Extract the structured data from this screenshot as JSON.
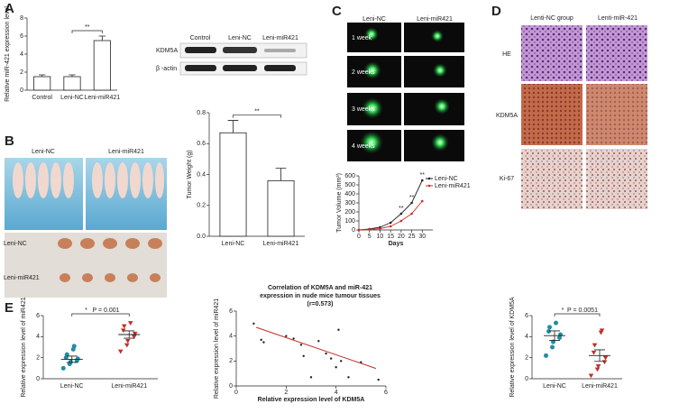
{
  "panels": {
    "labels": [
      "A",
      "B",
      "C",
      "D",
      "E"
    ],
    "blot": {
      "lanes": [
        "Control",
        "Leni-NC",
        "Leni-miR421"
      ],
      "rows": [
        "KDM5A",
        "β -actin"
      ]
    },
    "mice": {
      "columns": [
        "Leni-NC",
        "Leni-miR421"
      ],
      "rows": [
        "Leni-NC",
        "Leni-miR421"
      ]
    },
    "fluorescence": {
      "columns": [
        "Leni-NC",
        "Leni-miR421"
      ],
      "rows": [
        "1 week",
        "2 weeks",
        "3 weeks",
        "4 weeks"
      ]
    },
    "histology": {
      "columns": [
        "Lenti-NC group",
        "Lenti-miR-421"
      ],
      "rows": [
        "HE",
        "KDM5A",
        "Ki-67"
      ]
    }
  },
  "chart_data": [
    {
      "type": "bar",
      "ylabel": "Relative miR-421 expression level",
      "categories": [
        "Control",
        "Leni-NC",
        "Leni-miR421"
      ],
      "values": [
        1.5,
        1.5,
        5.5
      ],
      "errors": [
        0.2,
        0.2,
        0.5
      ],
      "ylim": [
        0,
        8
      ],
      "yticks": [
        0,
        2,
        4,
        6,
        8
      ],
      "annotation": "**",
      "color": "#ffffff"
    },
    {
      "type": "bar",
      "ylabel": "Tumor Weight (g)",
      "categories": [
        "Leni-NC",
        "Leni-miR421"
      ],
      "values": [
        0.67,
        0.36
      ],
      "errors": [
        0.08,
        0.08
      ],
      "ylim": [
        0,
        0.8
      ],
      "yticks": [
        {
          "value": 0,
          "label": "0.0"
        },
        0.2,
        0.4,
        0.6,
        0.8
      ],
      "annotation": "**",
      "color": "#ffffff"
    },
    {
      "type": "line",
      "xlabel": "Days",
      "ylabel": "Tumor Volume (mm³)",
      "x": [
        0,
        5,
        10,
        15,
        20,
        25,
        30
      ],
      "xlim": [
        0,
        35
      ],
      "xticks": [
        0,
        5,
        10,
        15,
        20,
        25,
        30
      ],
      "ylim": [
        0,
        600
      ],
      "yticks": [
        0,
        100,
        200,
        300,
        400,
        500,
        600
      ],
      "series": [
        {
          "name": "Leni-NC",
          "color": "#222222",
          "values": [
            0,
            10,
            30,
            80,
            180,
            300,
            550
          ]
        },
        {
          "name": "Leni-miR421",
          "color": "#d42a2a",
          "values": [
            0,
            5,
            15,
            40,
            100,
            180,
            320
          ]
        }
      ],
      "annotations": [
        "**",
        "**",
        "**"
      ],
      "annotation_x": [
        20,
        25,
        30
      ]
    },
    {
      "type": "strip",
      "ylabel": "Relative expression level of miR421",
      "categories": [
        "Leni-NC",
        "Leni-miR421"
      ],
      "ylim": [
        0,
        6
      ],
      "yticks": [
        0,
        2,
        4,
        6
      ],
      "annotation": "*",
      "pvalue": "P = 0.001",
      "groups": [
        {
          "color": "#1f8fa0",
          "marker": "circle",
          "values": [
            1.0,
            1.4,
            1.6,
            1.7,
            1.9,
            2.0,
            2.3,
            2.8,
            3.1
          ],
          "mean": 1.85,
          "sem": 0.3
        },
        {
          "color": "#c0302a",
          "marker": "triangle",
          "values": [
            2.6,
            3.2,
            3.6,
            4.0,
            4.3,
            4.6,
            5.0,
            5.3
          ],
          "mean": 4.2,
          "sem": 0.35
        }
      ]
    },
    {
      "type": "scatter",
      "title": "Correlation of KDM5A and miR-421 expression in nude mice tumour tissues",
      "subtitle": "(r=0.573)",
      "xlabel": "Relative expression level of KDM5A",
      "ylabel": "Relative expression level of miR421",
      "x": [
        0.7,
        1.0,
        1.1,
        2.0,
        2.3,
        2.6,
        2.7,
        3.0,
        3.3,
        3.6,
        3.8,
        4.0,
        4.1,
        4.2,
        4.5,
        5.0,
        5.7
      ],
      "y": [
        5.0,
        3.7,
        3.5,
        4.0,
        3.8,
        3.3,
        2.4,
        0.7,
        3.6,
        2.6,
        2.2,
        1.5,
        4.5,
        2.0,
        0.7,
        1.9,
        0.5
      ],
      "xlim": [
        0,
        6
      ],
      "xticks": [
        0,
        2,
        4,
        6
      ],
      "ylim": [
        0,
        6
      ],
      "yticks": [
        0,
        2,
        4,
        6
      ],
      "fit_x": [
        0.8,
        5.6
      ],
      "fit_y": [
        4.7,
        1.4
      ],
      "color": "#222222",
      "fit_color": "#c8282a"
    },
    {
      "type": "strip",
      "ylabel": "Relative expression level of KDM5A",
      "categories": [
        "Leni-NC",
        "Leni-miR421"
      ],
      "ylim": [
        0,
        6
      ],
      "yticks": [
        0,
        2,
        4,
        6
      ],
      "annotation": "*",
      "pvalue": "P = 0.0051",
      "groups": [
        {
          "color": "#1f8fa0",
          "marker": "circle",
          "values": [
            2.2,
            3.0,
            3.5,
            3.9,
            4.2,
            4.5,
            4.9,
            5.3
          ],
          "mean": 4.1,
          "sem": 0.45
        },
        {
          "color": "#c0302a",
          "marker": "triangle",
          "values": [
            0.3,
            0.9,
            1.2,
            1.6,
            2.0,
            2.5,
            3.2,
            4.4,
            4.6
          ],
          "mean": 2.2,
          "sem": 0.55
        }
      ]
    }
  ]
}
